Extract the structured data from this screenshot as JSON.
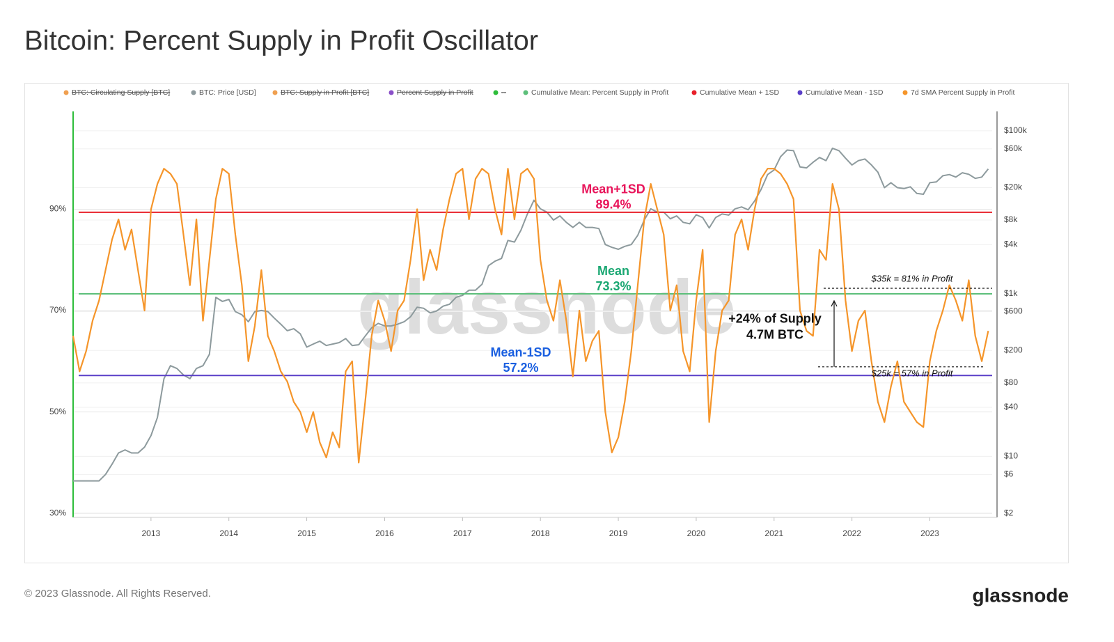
{
  "page_title": "Bitcoin: Percent Supply in Profit Oscillator",
  "footer": "© 2023 Glassnode. All Rights Reserved.",
  "logo": "glassnode",
  "chart_data": {
    "type": "line",
    "watermark": "glassnode",
    "xlim": [
      2012.0,
      2023.8
    ],
    "xticks": [
      2013,
      2014,
      2015,
      2016,
      2017,
      2018,
      2019,
      2020,
      2021,
      2022,
      2023
    ],
    "ylim": [
      29.2,
      109.3
    ],
    "yticks": [
      {
        "value": 30,
        "label": "30%"
      },
      {
        "value": 50,
        "label": "50%"
      },
      {
        "value": 70,
        "label": "70%"
      },
      {
        "value": 90,
        "label": "90%"
      }
    ],
    "y2lim": [
      1.78,
      173000
    ],
    "y2log": true,
    "y2ticks": [
      {
        "value": 100000,
        "label": "$100k"
      },
      {
        "value": 60000,
        "label": "$60k"
      },
      {
        "value": 20000,
        "label": "$20k"
      },
      {
        "value": 8000,
        "label": "$8k"
      },
      {
        "value": 4000,
        "label": "$4k"
      },
      {
        "value": 1000,
        "label": "$1k"
      },
      {
        "value": 600,
        "label": "$600"
      },
      {
        "value": 200,
        "label": "$200"
      },
      {
        "value": 80,
        "label": "$80"
      },
      {
        "value": 40,
        "label": "$40"
      },
      {
        "value": 10,
        "label": "$10"
      },
      {
        "value": 6,
        "label": "$6"
      },
      {
        "value": 2,
        "label": "$2"
      }
    ],
    "grid": true,
    "legend_position": "top",
    "x": [
      2012,
      2012.083,
      2012.167,
      2012.25,
      2012.333,
      2012.417,
      2012.5,
      2012.583,
      2012.667,
      2012.75,
      2012.833,
      2012.917,
      2013,
      2013.083,
      2013.167,
      2013.25,
      2013.333,
      2013.417,
      2013.5,
      2013.583,
      2013.667,
      2013.75,
      2013.833,
      2013.917,
      2014,
      2014.083,
      2014.167,
      2014.25,
      2014.333,
      2014.417,
      2014.5,
      2014.583,
      2014.667,
      2014.75,
      2014.833,
      2014.917,
      2015,
      2015.083,
      2015.167,
      2015.25,
      2015.333,
      2015.417,
      2015.5,
      2015.583,
      2015.667,
      2015.75,
      2015.833,
      2015.917,
      2016,
      2016.083,
      2016.167,
      2016.25,
      2016.333,
      2016.417,
      2016.5,
      2016.583,
      2016.667,
      2016.75,
      2016.833,
      2016.917,
      2017,
      2017.083,
      2017.167,
      2017.25,
      2017.333,
      2017.417,
      2017.5,
      2017.583,
      2017.667,
      2017.75,
      2017.833,
      2017.917,
      2018,
      2018.083,
      2018.167,
      2018.25,
      2018.333,
      2018.417,
      2018.5,
      2018.583,
      2018.667,
      2018.75,
      2018.833,
      2018.917,
      2019,
      2019.083,
      2019.167,
      2019.25,
      2019.333,
      2019.417,
      2019.5,
      2019.583,
      2019.667,
      2019.75,
      2019.833,
      2019.917,
      2020,
      2020.083,
      2020.167,
      2020.25,
      2020.333,
      2020.417,
      2020.5,
      2020.583,
      2020.667,
      2020.75,
      2020.833,
      2020.917,
      2021,
      2021.083,
      2021.167,
      2021.25,
      2021.333,
      2021.417,
      2021.5,
      2021.583,
      2021.667,
      2021.75,
      2021.833,
      2021.917,
      2022,
      2022.083,
      2022.167,
      2022.25,
      2022.333,
      2022.417,
      2022.5,
      2022.583,
      2022.667,
      2022.75,
      2022.833,
      2022.917,
      2023,
      2023.083,
      2023.167,
      2023.25,
      2023.333,
      2023.417,
      2023.5,
      2023.583,
      2023.667,
      2023.75
    ],
    "series": [
      {
        "name": "BTC: Circulating Supply [BTC]",
        "color": "#f0a050",
        "hidden": true
      },
      {
        "name": "BTC: Price [USD]",
        "color": "#8d9a9d",
        "axis": "y2",
        "values": [
          5,
          5,
          5,
          5,
          5,
          6,
          8,
          11,
          12,
          11,
          11,
          13,
          18,
          30,
          90,
          130,
          120,
          100,
          90,
          120,
          130,
          180,
          900,
          800,
          850,
          600,
          550,
          450,
          600,
          620,
          600,
          500,
          420,
          350,
          370,
          320,
          220,
          240,
          260,
          230,
          240,
          250,
          280,
          230,
          235,
          300,
          380,
          430,
          400,
          400,
          420,
          450,
          520,
          680,
          660,
          580,
          610,
          700,
          740,
          900,
          950,
          1100,
          1100,
          1300,
          2200,
          2500,
          2700,
          4500,
          4300,
          6000,
          9500,
          14000,
          11000,
          10000,
          8000,
          9000,
          7500,
          6500,
          7500,
          6500,
          6500,
          6300,
          4000,
          3700,
          3500,
          3800,
          4000,
          5200,
          8000,
          11000,
          10000,
          10000,
          8300,
          9000,
          7500,
          7200,
          9300,
          8600,
          6400,
          8600,
          9500,
          9200,
          11000,
          11600,
          10700,
          13700,
          19000,
          29000,
          33000,
          48000,
          58000,
          57000,
          36000,
          35000,
          41000,
          47000,
          43000,
          61000,
          57000,
          46000,
          38000,
          43000,
          45000,
          38000,
          31000,
          20000,
          23000,
          20000,
          19500,
          20500,
          17000,
          16600,
          23000,
          23500,
          28000,
          29000,
          27000,
          30500,
          29200,
          26000,
          27000,
          34000
        ]
      },
      {
        "name": "BTC: Supply in Profit [BTC]",
        "color": "#f0a050",
        "hidden": true
      },
      {
        "name": "Percent Supply in Profit",
        "color": "#8a4fc8",
        "hidden": true
      },
      {
        "name": "--",
        "color": "#2dbd3a",
        "hidden": true
      },
      {
        "name": "Cumulative Mean: Percent Supply in Profit",
        "color": "#5cbf7a",
        "value": 73.3,
        "label": "Mean",
        "value_label": "73.3%",
        "label_color": "#1aa772"
      },
      {
        "name": "Cumulative Mean + 1SD",
        "color": "#e8202a",
        "value": 89.4,
        "label": "Mean+1SD",
        "value_label": "89.4%",
        "label_color": "#e8145a"
      },
      {
        "name": "Cumulative Mean - 1SD",
        "color": "#5a3fc8",
        "value": 57.2,
        "label": "Mean-1SD",
        "value_label": "57.2%",
        "label_color": "#1a5fe0"
      },
      {
        "name": "7d SMA Percent Supply in Profit",
        "color": "#f5952a",
        "values": [
          65,
          58,
          62,
          68,
          72,
          78,
          84,
          88,
          82,
          86,
          78,
          70,
          90,
          95,
          98,
          97,
          95,
          85,
          75,
          88,
          68,
          80,
          92,
          98,
          97,
          85,
          75,
          60,
          67,
          78,
          65,
          62,
          58,
          56,
          52,
          50,
          46,
          50,
          44,
          41,
          46,
          43,
          58,
          60,
          40,
          52,
          65,
          72,
          68,
          62,
          70,
          72,
          80,
          90,
          76,
          82,
          78,
          86,
          92,
          97,
          98,
          88,
          96,
          98,
          97,
          90,
          85,
          98,
          88,
          97,
          98,
          96,
          80,
          72,
          68,
          76,
          68,
          57,
          70,
          60,
          64,
          66,
          50,
          42,
          45,
          52,
          62,
          75,
          88,
          95,
          90,
          85,
          70,
          75,
          62,
          58,
          72,
          82,
          48,
          62,
          70,
          72,
          85,
          88,
          82,
          90,
          96,
          98,
          98,
          97,
          95,
          92,
          70,
          66,
          65,
          82,
          80,
          95,
          90,
          72,
          62,
          68,
          70,
          60,
          52,
          48,
          55,
          60,
          52,
          50,
          48,
          47,
          60,
          66,
          70,
          75,
          72,
          68,
          76,
          65,
          60,
          66
        ]
      }
    ],
    "annotations": [
      {
        "text": "$35k = 81% in Profit",
        "level": 74.4
      },
      {
        "text": "$25k = 57% in Profit",
        "level": 58.9
      }
    ],
    "callout": [
      "+24% of Supply",
      "4.7M BTC"
    ]
  }
}
